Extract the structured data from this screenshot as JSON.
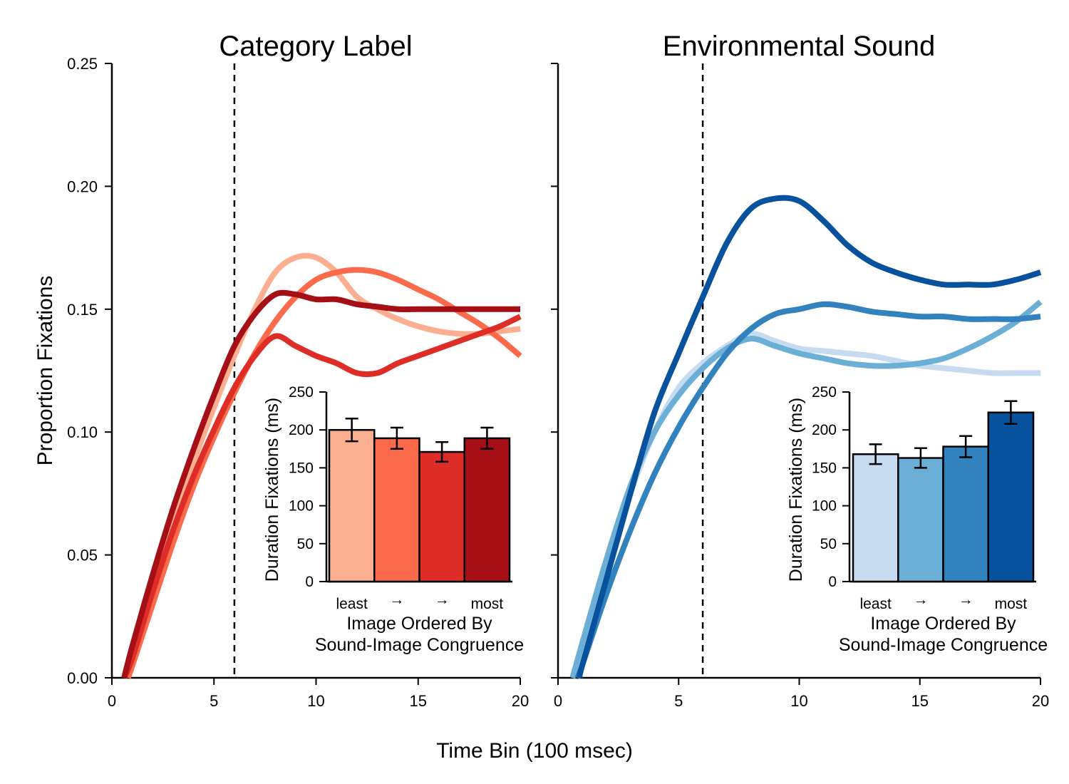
{
  "figure": {
    "shared_xlabel": "Time Bin (100 msec)",
    "shared_ylabel": "Proportion Fixations"
  },
  "chart_data": [
    {
      "type": "line",
      "title": "Category Label",
      "xlabel": "Time Bin (100 msec)",
      "ylabel": "Proportion Fixations",
      "xlim": [
        0,
        20
      ],
      "ylim": [
        0,
        0.25
      ],
      "xticks": [
        0,
        5,
        10,
        15,
        20
      ],
      "yticks": [
        "0.00",
        "0.05",
        "0.10",
        "0.15",
        "0.20",
        "0.25"
      ],
      "vline_x": 6,
      "grid": false,
      "series": [
        {
          "color": "#fcae91",
          "x": [
            0.6,
            1,
            2,
            3,
            4,
            5,
            6,
            7,
            8,
            9,
            10,
            11,
            12,
            13,
            14,
            15,
            16,
            17,
            18,
            19,
            20
          ],
          "y": [
            0.0,
            0.012,
            0.04,
            0.065,
            0.088,
            0.11,
            0.131,
            0.15,
            0.165,
            0.171,
            0.171,
            0.165,
            0.155,
            0.15,
            0.146,
            0.143,
            0.141,
            0.14,
            0.14,
            0.141,
            0.142
          ]
        },
        {
          "color": "#fb6a4a",
          "x": [
            0.8,
            1,
            2,
            3,
            4,
            5,
            6,
            7,
            8,
            9,
            10,
            11,
            12,
            13,
            14,
            15,
            16,
            17,
            18,
            19,
            20
          ],
          "y": [
            0.0,
            0.005,
            0.03,
            0.055,
            0.078,
            0.098,
            0.116,
            0.132,
            0.145,
            0.155,
            0.162,
            0.165,
            0.166,
            0.165,
            0.162,
            0.158,
            0.154,
            0.149,
            0.144,
            0.138,
            0.131
          ]
        },
        {
          "color": "#de2d26",
          "x": [
            0.6,
            1,
            2,
            3,
            4,
            5,
            6,
            7,
            8,
            9,
            10,
            11,
            12,
            13,
            14,
            15,
            16,
            17,
            18,
            19,
            20
          ],
          "y": [
            0.0,
            0.008,
            0.035,
            0.06,
            0.082,
            0.101,
            0.118,
            0.131,
            0.139,
            0.135,
            0.131,
            0.128,
            0.124,
            0.124,
            0.128,
            0.131,
            0.134,
            0.137,
            0.14,
            0.143,
            0.147
          ]
        },
        {
          "color": "#a50f15",
          "x": [
            0.6,
            1,
            2,
            3,
            4,
            5,
            6,
            7,
            8,
            9,
            10,
            11,
            12,
            13,
            14,
            15,
            16,
            17,
            18,
            19,
            20
          ],
          "y": [
            0.0,
            0.013,
            0.042,
            0.069,
            0.093,
            0.115,
            0.135,
            0.148,
            0.156,
            0.156,
            0.154,
            0.154,
            0.152,
            0.151,
            0.15,
            0.15,
            0.15,
            0.15,
            0.15,
            0.15,
            0.15
          ]
        }
      ],
      "inset": {
        "type": "bar",
        "ylabel": "Duration Fixations (ms)",
        "xlabel_lines": [
          "Image Ordered By",
          "Sound-Image Congruence"
        ],
        "categories": [
          "least",
          "→",
          "→",
          "most"
        ],
        "values": [
          200,
          189,
          171,
          189
        ],
        "errors": [
          15,
          14,
          13,
          14
        ],
        "colors": [
          "#fcae91",
          "#fb6a4a",
          "#de2d26",
          "#a50f15"
        ],
        "ylim": [
          0,
          250
        ],
        "yticks": [
          "0",
          "50",
          "100",
          "150",
          "200",
          "250"
        ]
      }
    },
    {
      "type": "line",
      "title": "Environmental Sound",
      "xlabel": "Time Bin (100 msec)",
      "ylabel": "Proportion Fixations",
      "xlim": [
        0,
        20
      ],
      "ylim": [
        0,
        0.25
      ],
      "xticks": [
        0,
        5,
        10,
        15,
        20
      ],
      "vline_x": 6,
      "grid": false,
      "series": [
        {
          "color": "#c6dbef",
          "x": [
            0.6,
            1,
            2,
            3,
            4,
            5,
            6,
            7,
            8,
            9,
            10,
            11,
            12,
            13,
            14,
            15,
            16,
            17,
            18,
            19,
            20
          ],
          "y": [
            0.0,
            0.012,
            0.045,
            0.075,
            0.1,
            0.118,
            0.128,
            0.135,
            0.14,
            0.137,
            0.134,
            0.133,
            0.132,
            0.131,
            0.129,
            0.127,
            0.126,
            0.125,
            0.124,
            0.124,
            0.124
          ]
        },
        {
          "color": "#6baed6",
          "x": [
            0.6,
            1,
            2,
            3,
            4,
            5,
            6,
            7,
            8,
            9,
            10,
            11,
            12,
            13,
            14,
            15,
            16,
            17,
            18,
            19,
            20
          ],
          "y": [
            0.0,
            0.014,
            0.048,
            0.078,
            0.1,
            0.115,
            0.126,
            0.134,
            0.138,
            0.135,
            0.132,
            0.13,
            0.128,
            0.127,
            0.127,
            0.128,
            0.13,
            0.134,
            0.139,
            0.145,
            0.153
          ]
        },
        {
          "color": "#3182bd",
          "x": [
            0.8,
            1,
            2,
            3,
            4,
            5,
            6,
            7,
            8,
            9,
            10,
            11,
            12,
            13,
            14,
            15,
            16,
            17,
            18,
            19,
            20
          ],
          "y": [
            0.0,
            0.005,
            0.034,
            0.06,
            0.083,
            0.102,
            0.118,
            0.132,
            0.142,
            0.148,
            0.15,
            0.152,
            0.151,
            0.149,
            0.148,
            0.147,
            0.147,
            0.146,
            0.146,
            0.146,
            0.147
          ]
        },
        {
          "color": "#08519c",
          "x": [
            0.9,
            1,
            2,
            3,
            4,
            5,
            6,
            7,
            8,
            9,
            10,
            11,
            12,
            13,
            14,
            15,
            16,
            17,
            18,
            19,
            20
          ],
          "y": [
            0.0,
            0.005,
            0.04,
            0.075,
            0.108,
            0.132,
            0.155,
            0.177,
            0.191,
            0.195,
            0.194,
            0.186,
            0.176,
            0.169,
            0.165,
            0.162,
            0.16,
            0.16,
            0.16,
            0.162,
            0.165
          ]
        }
      ],
      "inset": {
        "type": "bar",
        "ylabel": "Duration Fixations (ms)",
        "xlabel_lines": [
          "Image Ordered By",
          "Sound-Image Congruence"
        ],
        "categories": [
          "least",
          "→",
          "→",
          "most"
        ],
        "values": [
          168,
          163,
          178,
          223
        ],
        "errors": [
          13,
          13,
          14,
          15
        ],
        "colors": [
          "#c6dbef",
          "#6baed6",
          "#3182bd",
          "#08519c"
        ],
        "ylim": [
          0,
          250
        ],
        "yticks": [
          "0",
          "50",
          "100",
          "150",
          "200",
          "250"
        ]
      }
    }
  ]
}
